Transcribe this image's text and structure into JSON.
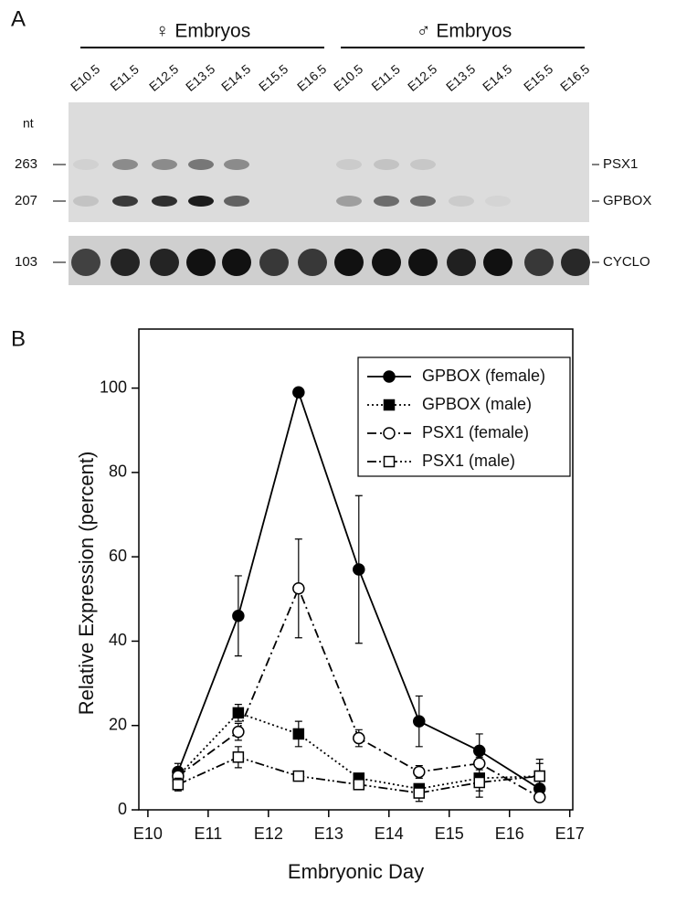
{
  "panel_a": {
    "label": "A",
    "female_header": "♀ Embryos",
    "male_header": "♂ Embryos",
    "lanes": [
      "E10.5",
      "E11.5",
      "E12.5",
      "E13.5",
      "E14.5",
      "E15.5",
      "E16.5",
      "E10.5",
      "E11.5",
      "E12.5",
      "E13.5",
      "E14.5",
      "E15.5",
      "E16.5"
    ],
    "size_header": "nt",
    "sizes": [
      "263",
      "207",
      "103"
    ],
    "bands": [
      "PSX1",
      "GPBOX",
      "CYCLO"
    ]
  },
  "chart_data": {
    "type": "line",
    "panel_label": "B",
    "x_label": "Embryonic Day",
    "y_label": "Relative Expression (percent)",
    "x": [
      10.5,
      11.5,
      12.5,
      13.5,
      14.5,
      15.5,
      16.5
    ],
    "xlim": [
      9.85,
      17.05
    ],
    "xticks": [
      {
        "value": 10,
        "label": "E10"
      },
      {
        "value": 11,
        "label": "E11"
      },
      {
        "value": 12,
        "label": "E12"
      },
      {
        "value": 13,
        "label": "E13"
      },
      {
        "value": 14,
        "label": "E14"
      },
      {
        "value": 15,
        "label": "E15"
      },
      {
        "value": 16,
        "label": "E16"
      },
      {
        "value": 17,
        "label": "E17"
      }
    ],
    "ylim": [
      0,
      114
    ],
    "yticks": [
      0,
      20,
      40,
      60,
      80,
      100
    ],
    "grid": false,
    "legend": "upper right",
    "series": [
      {
        "name": "GPBOX (female)",
        "color": "#000000",
        "marker": "circle",
        "filled": true,
        "dash": "solid",
        "values": [
          9,
          46,
          99,
          57,
          21,
          14,
          5
        ],
        "errors": [
          2,
          9.5,
          0,
          17.5,
          6,
          4,
          1
        ]
      },
      {
        "name": "GPBOX (male)",
        "color": "#000000",
        "marker": "square",
        "filled": true,
        "dash": "dotted",
        "values": [
          8,
          23,
          18,
          7.5,
          5,
          7.5,
          8
        ],
        "errors": [
          2,
          2,
          3,
          1,
          1,
          4.5,
          4
        ]
      },
      {
        "name": "PSX1 (female)",
        "color": "#000000",
        "marker": "circle",
        "filled": false,
        "dash": "dashdot",
        "values": [
          8,
          18.5,
          52.5,
          17,
          9,
          11,
          3
        ],
        "errors": [
          2,
          2,
          11.7,
          2,
          1.5,
          1.5,
          1
        ]
      },
      {
        "name": "PSX1 (male)",
        "color": "#000000",
        "marker": "square",
        "filled": false,
        "dash": "dashdotdot",
        "values": [
          6,
          12.5,
          8,
          6,
          4,
          6.5,
          8
        ],
        "errors": [
          1.5,
          2.5,
          1,
          1,
          2,
          2,
          3
        ]
      }
    ]
  }
}
